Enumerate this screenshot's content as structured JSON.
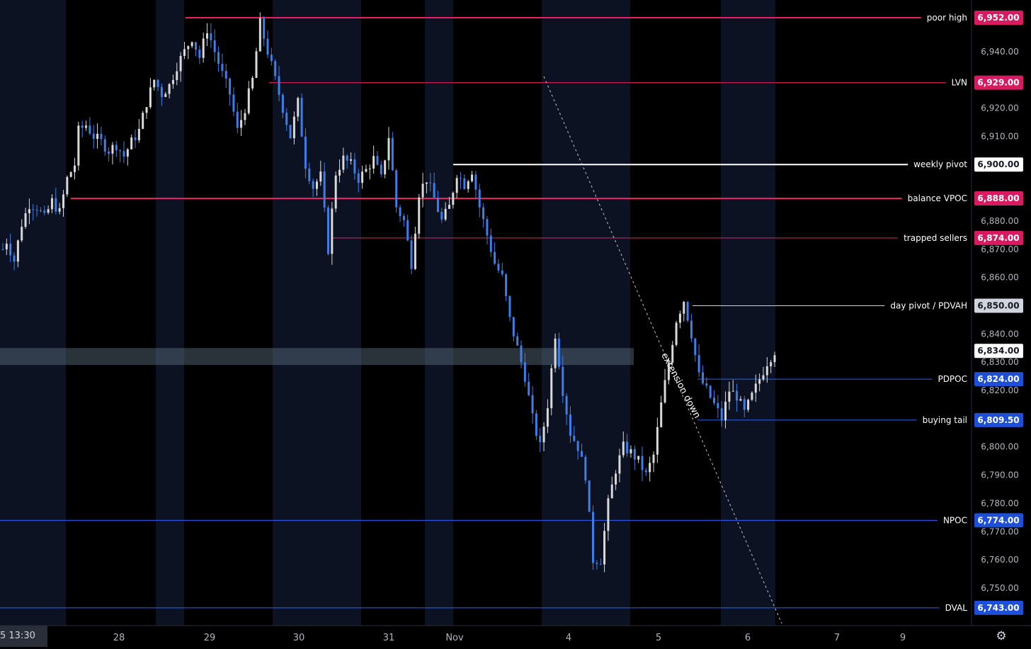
{
  "chart_data": {
    "type": "candlestick",
    "y_unit": "price",
    "ylim": [
      6738,
      6956
    ],
    "price_ticks": [
      6940,
      6920,
      6910,
      6880,
      6870,
      6860,
      6840,
      6830,
      6820,
      6800,
      6790,
      6780,
      6770,
      6760,
      6750
    ],
    "price_tick_labels": [
      "6,940.00",
      "6,920.00",
      "6,910.00",
      "6,880.00",
      "6,870.00",
      "6,860.00",
      "6,840.00",
      "6,830.00",
      "6,820.00",
      "6,800.00",
      "6,790.00",
      "6,780.00",
      "6,770.00",
      "6,760.00",
      "6,750.00"
    ],
    "x_ticks": [
      "28",
      "29",
      "30",
      "31",
      "Nov",
      "4",
      "5",
      "6",
      "7",
      "9"
    ],
    "time_cursor": "5  13:30",
    "current_price": {
      "value": 6834,
      "label": "6,834.00"
    },
    "levels": [
      {
        "label": "poor high",
        "value": 6952,
        "price_label": "6,952.00",
        "color": "#e91e63"
      },
      {
        "label": "LVN",
        "value": 6929,
        "price_label": "6,929.00",
        "color": "#e91e63"
      },
      {
        "label": "weekly pivot",
        "value": 6900,
        "price_label": "6,900.00",
        "color": "#ffffff"
      },
      {
        "label": "balance VPOC",
        "value": 6888,
        "price_label": "6,888.00",
        "color": "#e91e63"
      },
      {
        "label": "trapped sellers",
        "value": 6874,
        "price_label": "6,874.00",
        "color": "#e91e63"
      },
      {
        "label": "day pivot / PDVAH",
        "value": 6850,
        "price_label": "6,850.00",
        "color": "#d1d4dc"
      },
      {
        "label": "PDPOC",
        "value": 6824,
        "price_label": "6,824.00",
        "color": "#2962ff"
      },
      {
        "label": "buying tail",
        "value": 6809.5,
        "price_label": "6,809.50",
        "color": "#2962ff"
      },
      {
        "label": "NPOC",
        "value": 6774,
        "price_label": "6,774.00",
        "color": "#2962ff"
      },
      {
        "label": "DVAL",
        "value": 6743,
        "price_label": "6,743.00",
        "color": "#2962ff"
      }
    ],
    "zone": {
      "from": 6829,
      "to": 6835
    },
    "annotation": "extension down",
    "path": [
      [
        0,
        6870
      ],
      [
        1,
        6873
      ],
      [
        3,
        6866
      ],
      [
        5,
        6879
      ],
      [
        7,
        6886
      ],
      [
        9,
        6885
      ],
      [
        11,
        6881
      ],
      [
        13,
        6887
      ],
      [
        15,
        6883
      ],
      [
        17,
        6895
      ],
      [
        19,
        6900
      ],
      [
        20,
        6912
      ],
      [
        22,
        6914
      ],
      [
        24,
        6910
      ],
      [
        26,
        6908
      ],
      [
        28,
        6905
      ],
      [
        30,
        6907
      ],
      [
        32,
        6903
      ],
      [
        34,
        6908
      ],
      [
        36,
        6912
      ],
      [
        38,
        6922
      ],
      [
        40,
        6930
      ],
      [
        42,
        6925
      ],
      [
        44,
        6928
      ],
      [
        46,
        6935
      ],
      [
        48,
        6940
      ],
      [
        50,
        6945
      ],
      [
        52,
        6938
      ],
      [
        54,
        6948
      ],
      [
        56,
        6940
      ],
      [
        58,
        6932
      ],
      [
        60,
        6925
      ],
      [
        62,
        6912
      ],
      [
        64,
        6920
      ],
      [
        66,
        6930
      ],
      [
        68,
        6950
      ],
      [
        70,
        6940
      ],
      [
        72,
        6930
      ],
      [
        74,
        6920
      ],
      [
        76,
        6910
      ],
      [
        78,
        6922
      ],
      [
        80,
        6900
      ],
      [
        82,
        6892
      ],
      [
        84,
        6896
      ],
      [
        86,
        6870
      ],
      [
        88,
        6897
      ],
      [
        90,
        6902
      ],
      [
        92,
        6900
      ],
      [
        94,
        6895
      ],
      [
        96,
        6898
      ],
      [
        98,
        6902
      ],
      [
        100,
        6895
      ],
      [
        102,
        6910
      ],
      [
        104,
        6885
      ],
      [
        106,
        6880
      ],
      [
        108,
        6865
      ],
      [
        110,
        6890
      ],
      [
        112,
        6895
      ],
      [
        114,
        6888
      ],
      [
        116,
        6880
      ],
      [
        118,
        6885
      ],
      [
        120,
        6897
      ],
      [
        122,
        6893
      ],
      [
        124,
        6898
      ],
      [
        126,
        6885
      ],
      [
        128,
        6875
      ],
      [
        130,
        6865
      ],
      [
        132,
        6860
      ],
      [
        134,
        6845
      ],
      [
        136,
        6835
      ],
      [
        138,
        6825
      ],
      [
        140,
        6810
      ],
      [
        142,
        6800
      ],
      [
        144,
        6815
      ],
      [
        146,
        6840
      ],
      [
        148,
        6820
      ],
      [
        150,
        6805
      ],
      [
        152,
        6800
      ],
      [
        154,
        6790
      ],
      [
        156,
        6760
      ],
      [
        158,
        6760
      ],
      [
        160,
        6780
      ],
      [
        162,
        6792
      ],
      [
        164,
        6800
      ],
      [
        166,
        6798
      ],
      [
        168,
        6795
      ],
      [
        170,
        6790
      ],
      [
        172,
        6797
      ],
      [
        174,
        6815
      ],
      [
        176,
        6830
      ],
      [
        178,
        6845
      ],
      [
        180,
        6852
      ],
      [
        182,
        6840
      ],
      [
        184,
        6825
      ],
      [
        186,
        6820
      ],
      [
        188,
        6815
      ],
      [
        190,
        6810
      ],
      [
        192,
        6820
      ],
      [
        194,
        6818
      ],
      [
        196,
        6812
      ],
      [
        198,
        6818
      ],
      [
        200,
        6824
      ],
      [
        202,
        6830
      ],
      [
        204,
        6834
      ]
    ]
  },
  "ui": {
    "settings_icon": "gear-icon"
  }
}
